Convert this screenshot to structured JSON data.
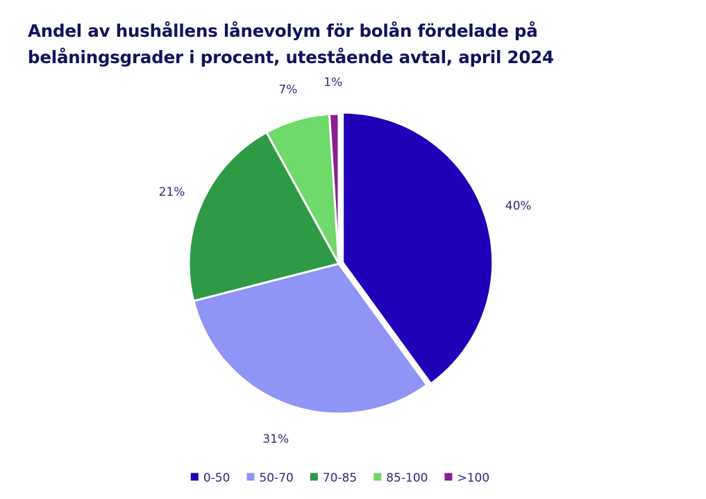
{
  "chart_data": {
    "type": "pie",
    "title": "Andel av hushållens lånevolym för bolån fördelade på belåningsgrader i procent, utestående avtal, april 2024",
    "categories": [
      "0-50",
      "50-70",
      "70-85",
      "85-100",
      ">100"
    ],
    "values": [
      40,
      31,
      21,
      7,
      1
    ],
    "data_labels": [
      "40%",
      "31%",
      "21%",
      "7%",
      "1%"
    ],
    "colors": [
      "#2000b8",
      "#8f94f5",
      "#2f9a45",
      "#6fd96a",
      "#8b1f8f"
    ],
    "start_angle": "12 o'clock",
    "direction": "clockwise",
    "exploded_first_slice": true,
    "legend_position": "bottom"
  }
}
